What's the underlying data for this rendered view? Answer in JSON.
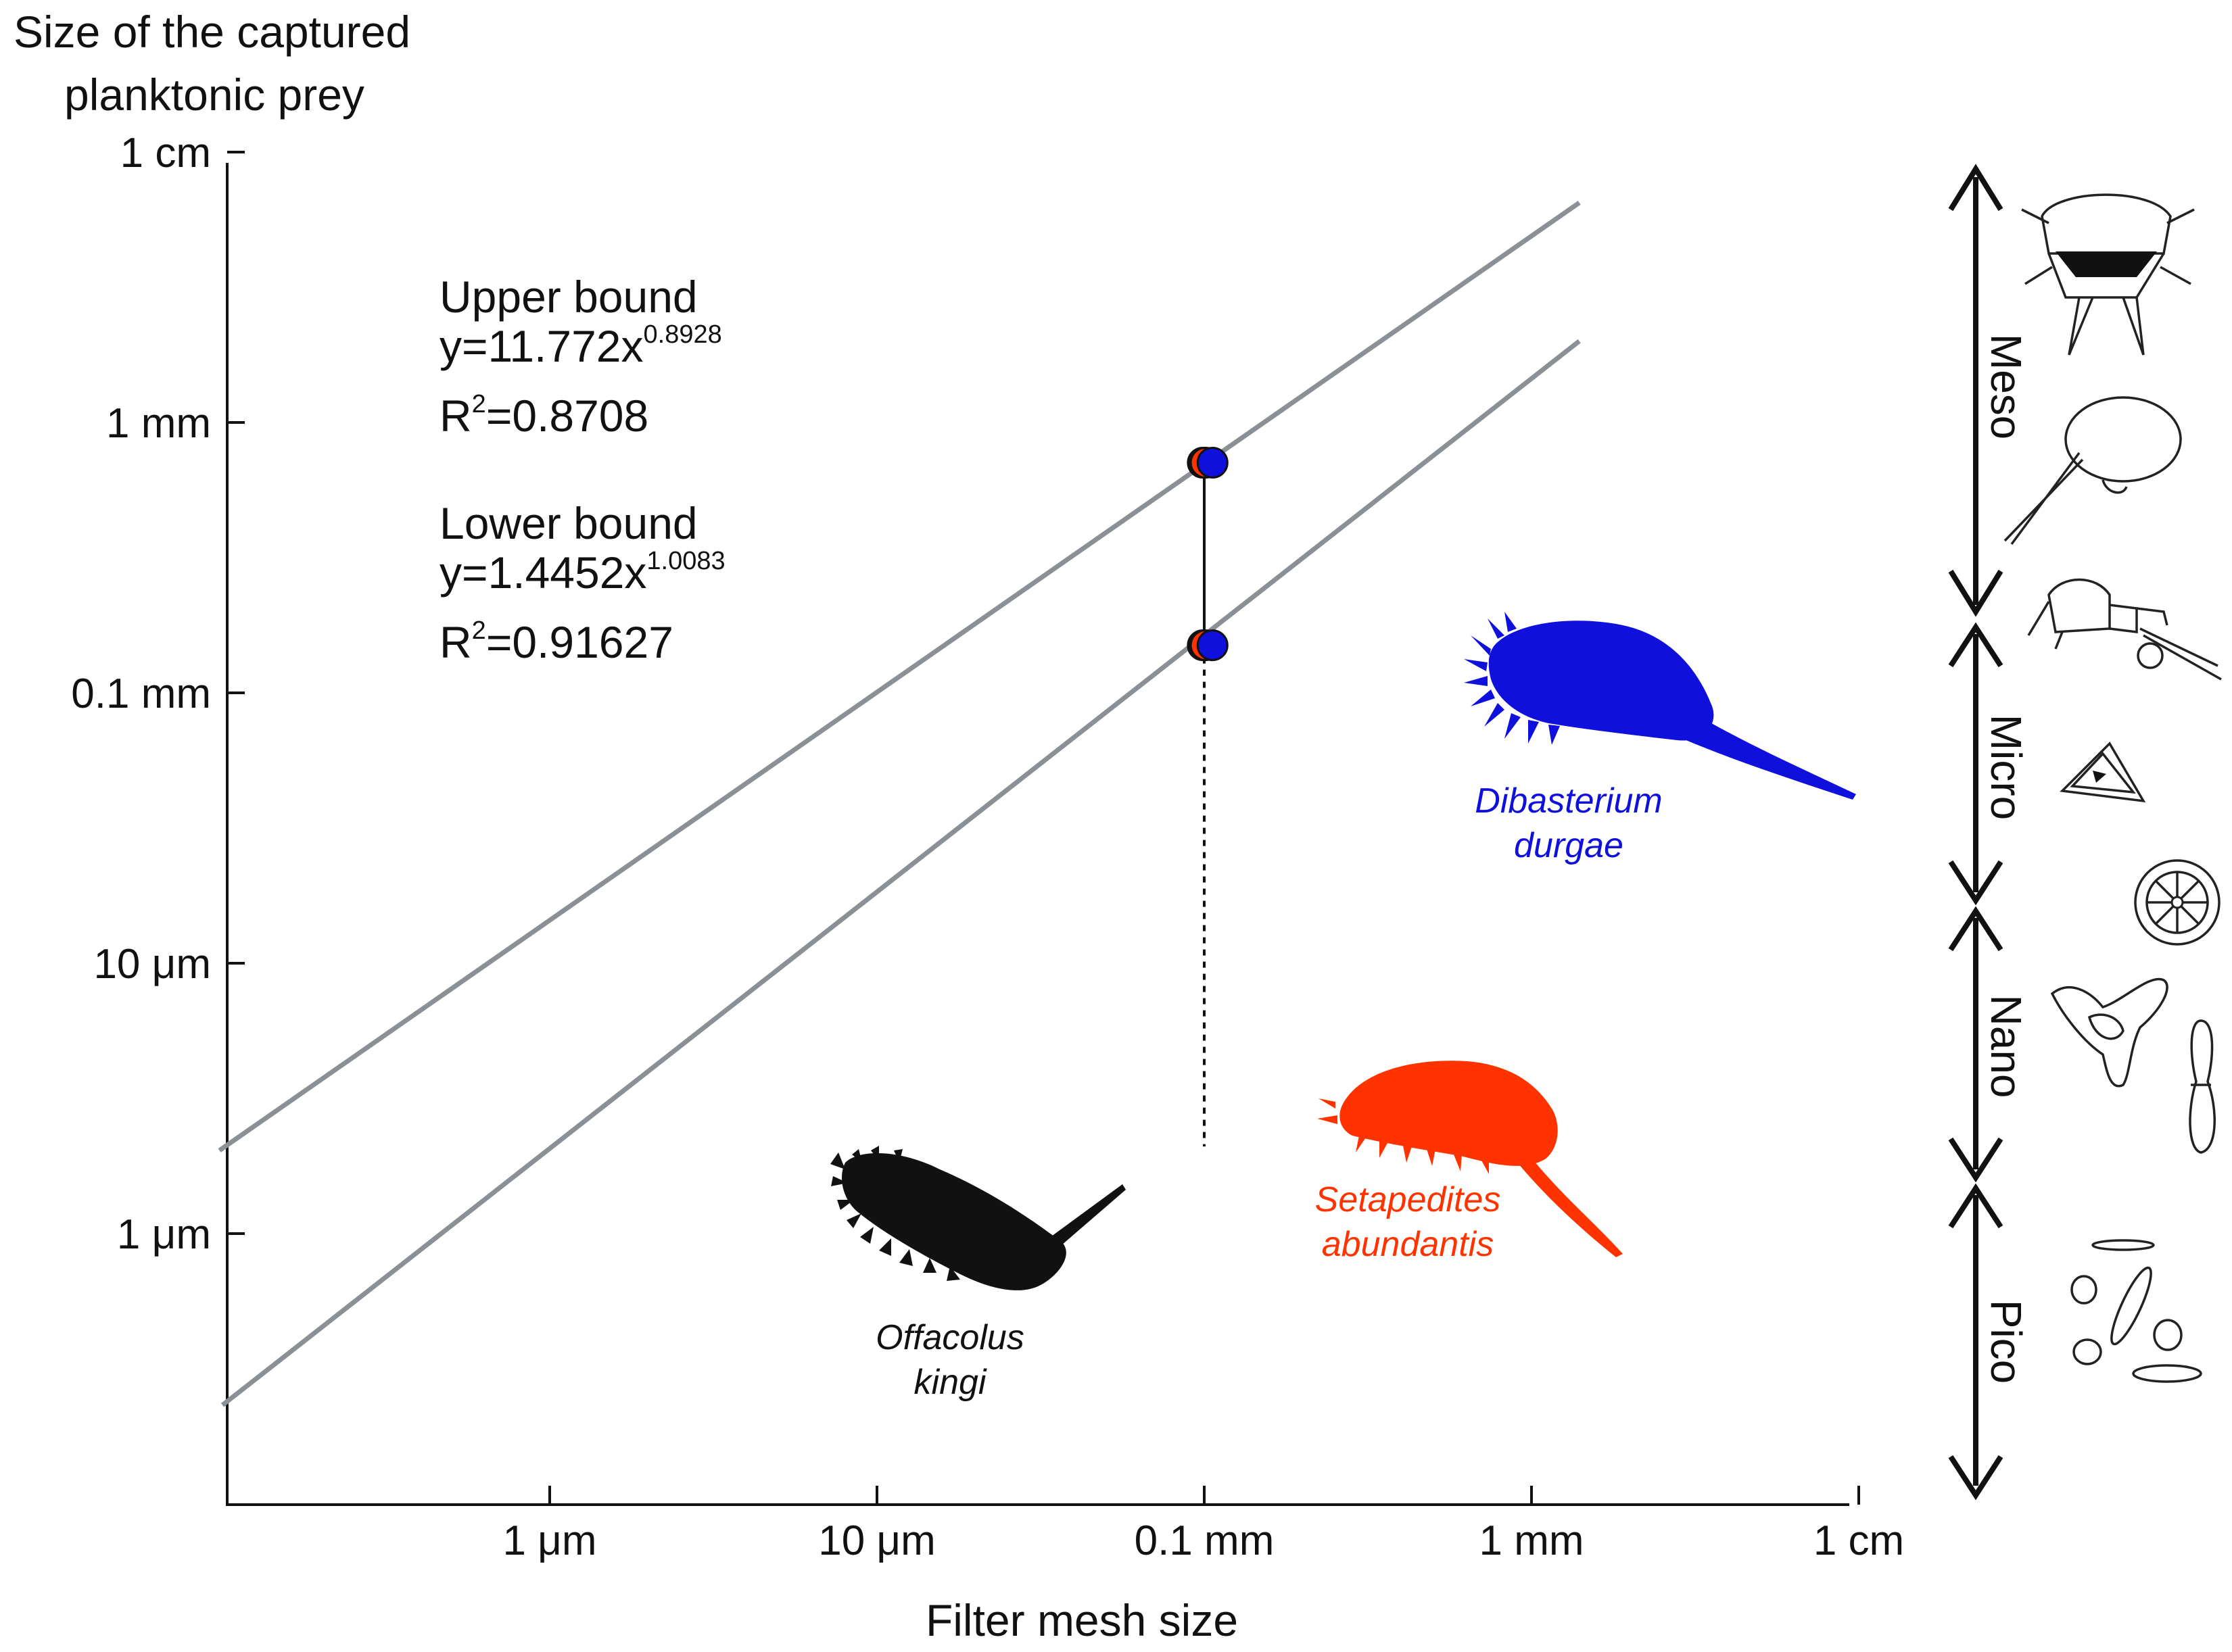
{
  "chart_data": {
    "type": "scatter",
    "scale": "log-log",
    "xlabel": "Filter mesh size",
    "ylabel": "Size of the captured planktonic prey",
    "x_ticks": [
      {
        "value_mm": 0.001,
        "label": "1 μm"
      },
      {
        "value_mm": 0.01,
        "label": "10 μm"
      },
      {
        "value_mm": 0.1,
        "label": "0.1 mm"
      },
      {
        "value_mm": 1,
        "label": "1 mm"
      },
      {
        "value_mm": 10,
        "label": "1 cm"
      }
    ],
    "y_ticks": [
      {
        "value_mm": 0.001,
        "label": "1 μm"
      },
      {
        "value_mm": 0.01,
        "label": "10 μm"
      },
      {
        "value_mm": 0.1,
        "label": "0.1 mm"
      },
      {
        "value_mm": 1,
        "label": "1 mm"
      },
      {
        "value_mm": 10,
        "label": "1 cm"
      }
    ],
    "xlim_mm": [
      0.0001,
      10
    ],
    "ylim_mm": [
      0.0001,
      10
    ],
    "lines": [
      {
        "role": "upper",
        "x_range_mm": [
          9.79e-05,
          1.4
        ],
        "y_mm": [
          0.00203,
          6.5
        ],
        "equation": "y=11.772x",
        "exponent": "0.8928",
        "r2_prefix": "R",
        "r2_sup": "2",
        "r2_value": "=0.8708"
      },
      {
        "role": "lower",
        "x_range_mm": [
          0.0001,
          1.4
        ],
        "y_mm": [
          0.000232,
          2.0
        ],
        "equation": "y=1.4452x",
        "exponent": "1.0083",
        "r2_prefix": "R",
        "r2_sup": "2",
        "r2_value": "=0.91627"
      }
    ],
    "points": [
      {
        "x_mm": 0.099,
        "y_mm": 0.71,
        "color": "#111111"
      },
      {
        "x_mm": 0.101,
        "y_mm": 0.71,
        "color": "#ff3300"
      },
      {
        "x_mm": 0.106,
        "y_mm": 0.71,
        "color": "#1010dd"
      },
      {
        "x_mm": 0.099,
        "y_mm": 0.15,
        "color": "#111111"
      },
      {
        "x_mm": 0.101,
        "y_mm": 0.15,
        "color": "#ff3300"
      },
      {
        "x_mm": 0.106,
        "y_mm": 0.15,
        "color": "#1010dd"
      }
    ],
    "range_bar": {
      "x_mm": 0.1,
      "y_top_mm": 0.71,
      "y_bottom_mm": 0.15,
      "dotted_to_mm": 0.0021
    },
    "species": [
      {
        "name_line1": "Offacolus",
        "name_line2": "kingi",
        "color": "#111111"
      },
      {
        "name_line1": "Setapedites",
        "name_line2": "abundantis",
        "color": "#ff3300"
      },
      {
        "name_line1": "Dibasterium",
        "name_line2": "durgae",
        "color": "#1010dd"
      }
    ],
    "size_classes": [
      "Meso",
      "Micro",
      "Nano",
      "Pico"
    ],
    "colors": {
      "line": "#8a9096",
      "axis": "#111111",
      "black": "#111111",
      "red": "#ff3300",
      "blue": "#1010dd"
    }
  },
  "labels": {
    "upper_title": "Upper bound",
    "lower_title": "Lower bound"
  }
}
